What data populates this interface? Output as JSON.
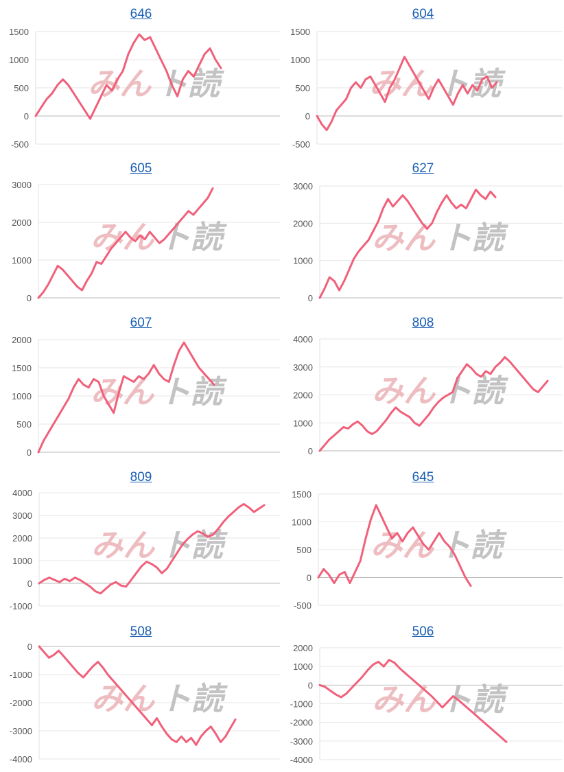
{
  "watermark": {
    "part1": "みん",
    "part2": "ト読"
  },
  "colors": {
    "line": "#f0607a",
    "title_link": "#1a5fb4"
  },
  "chart_data": [
    {
      "type": "line",
      "title": "646",
      "yticks": [
        -500,
        0,
        500,
        1000,
        1500
      ],
      "ylim": [
        -500,
        1500
      ],
      "values": [
        0,
        150,
        300,
        400,
        550,
        650,
        550,
        400,
        250,
        100,
        -50,
        150,
        350,
        550,
        450,
        650,
        800,
        1100,
        1300,
        1450,
        1350,
        1400,
        1200,
        1000,
        800,
        550,
        350,
        650,
        800,
        700,
        900,
        1100,
        1200,
        1000,
        850
      ]
    },
    {
      "type": "line",
      "title": "604",
      "yticks": [
        -500,
        0,
        500,
        1000,
        1500
      ],
      "ylim": [
        -500,
        1500
      ],
      "values": [
        0,
        -150,
        -250,
        -100,
        100,
        200,
        300,
        500,
        600,
        500,
        650,
        700,
        550,
        400,
        250,
        500,
        650,
        850,
        1050,
        900,
        750,
        600,
        450,
        300,
        500,
        650,
        500,
        350,
        200,
        400,
        550,
        400,
        550,
        450,
        650,
        700,
        500,
        600
      ]
    },
    {
      "type": "line",
      "title": "605",
      "yticks": [
        0,
        1000,
        2000,
        3000
      ],
      "ylim": [
        0,
        3000
      ],
      "values": [
        0,
        150,
        350,
        600,
        850,
        750,
        600,
        450,
        300,
        200,
        450,
        650,
        950,
        900,
        1100,
        1300,
        1450,
        1600,
        1750,
        1600,
        1500,
        1650,
        1550,
        1750,
        1600,
        1450,
        1550,
        1700,
        1850,
        2000,
        2150,
        2300,
        2200,
        2350,
        2500,
        2650,
        2900
      ]
    },
    {
      "type": "line",
      "title": "627",
      "yticks": [
        0,
        1000,
        2000,
        3000
      ],
      "ylim": [
        0,
        3000
      ],
      "values": [
        0,
        250,
        550,
        450,
        200,
        450,
        750,
        1050,
        1250,
        1400,
        1550,
        1800,
        2050,
        2400,
        2650,
        2450,
        2600,
        2750,
        2600,
        2400,
        2200,
        2000,
        1850,
        2000,
        2300,
        2550,
        2750,
        2550,
        2400,
        2500,
        2400,
        2650,
        2900,
        2750,
        2650,
        2850,
        2700
      ]
    },
    {
      "type": "line",
      "title": "607",
      "yticks": [
        0,
        500,
        1000,
        1500,
        2000
      ],
      "ylim": [
        0,
        2000
      ],
      "values": [
        0,
        200,
        350,
        500,
        650,
        800,
        950,
        1150,
        1300,
        1200,
        1150,
        1300,
        1250,
        1000,
        850,
        700,
        1050,
        1350,
        1300,
        1250,
        1350,
        1300,
        1400,
        1550,
        1400,
        1300,
        1250,
        1550,
        1800,
        1950,
        1800,
        1650,
        1500,
        1400,
        1300,
        1200
      ]
    },
    {
      "type": "line",
      "title": "808",
      "yticks": [
        0,
        1000,
        2000,
        3000,
        4000
      ],
      "ylim": [
        0,
        4000
      ],
      "values": [
        0,
        200,
        400,
        550,
        700,
        850,
        800,
        950,
        1050,
        900,
        700,
        600,
        700,
        900,
        1100,
        1350,
        1550,
        1400,
        1300,
        1200,
        1000,
        900,
        1100,
        1300,
        1550,
        1750,
        1900,
        2000,
        2100,
        2600,
        2850,
        3100,
        2950,
        2750,
        2650,
        2850,
        2750,
        3000,
        3150,
        3350,
        3200,
        3000,
        2800,
        2600,
        2400,
        2200,
        2100,
        2300,
        2500
      ]
    },
    {
      "type": "line",
      "title": "809",
      "yticks": [
        -1000,
        0,
        1000,
        2000,
        3000,
        4000
      ],
      "ylim": [
        -1000,
        4000
      ],
      "values": [
        0,
        150,
        250,
        150,
        50,
        200,
        100,
        250,
        150,
        0,
        -150,
        -350,
        -450,
        -250,
        -50,
        50,
        -100,
        -150,
        150,
        450,
        750,
        950,
        850,
        700,
        450,
        650,
        1000,
        1350,
        1700,
        1950,
        2150,
        2300,
        2200,
        2050,
        2150,
        2400,
        2700,
        2950,
        3150,
        3350,
        3500,
        3350,
        3150,
        3300,
        3450
      ]
    },
    {
      "type": "line",
      "title": "645",
      "yticks": [
        -500,
        0,
        500,
        1000,
        1500
      ],
      "ylim": [
        -500,
        1500
      ],
      "values": [
        0,
        150,
        50,
        -100,
        50,
        100,
        -100,
        100,
        300,
        700,
        1050,
        1300,
        1100,
        900,
        700,
        800,
        650,
        800,
        900,
        750,
        600,
        500,
        650,
        800,
        650,
        550,
        400,
        200,
        0,
        -150
      ]
    },
    {
      "type": "line",
      "title": "508",
      "yticks": [
        -4000,
        -3000,
        -2000,
        -1000,
        0
      ],
      "ylim": [
        -4000,
        0
      ],
      "values": [
        0,
        -200,
        -400,
        -300,
        -150,
        -350,
        -550,
        -750,
        -950,
        -1100,
        -900,
        -700,
        -550,
        -750,
        -1000,
        -1200,
        -1400,
        -1600,
        -1800,
        -2000,
        -2200,
        -2400,
        -2600,
        -2800,
        -2550,
        -2850,
        -3100,
        -3300,
        -3400,
        -3200,
        -3400,
        -3250,
        -3500,
        -3200,
        -3000,
        -2850,
        -3100,
        -3400,
        -3200,
        -2900,
        -2600
      ]
    },
    {
      "type": "line",
      "title": "506",
      "yticks": [
        -4000,
        -3000,
        -2000,
        -1000,
        0,
        1000,
        2000
      ],
      "ylim": [
        -4000,
        2000
      ],
      "values": [
        0,
        -100,
        -300,
        -500,
        -650,
        -450,
        -150,
        150,
        450,
        800,
        1100,
        1250,
        1000,
        1350,
        1200,
        900,
        650,
        400,
        150,
        -100,
        -350,
        -600,
        -900,
        -1200,
        -900,
        -600,
        -800,
        -1050,
        -1300,
        -1550,
        -1800,
        -2050,
        -2300,
        -2550,
        -2800,
        -3050
      ]
    }
  ]
}
